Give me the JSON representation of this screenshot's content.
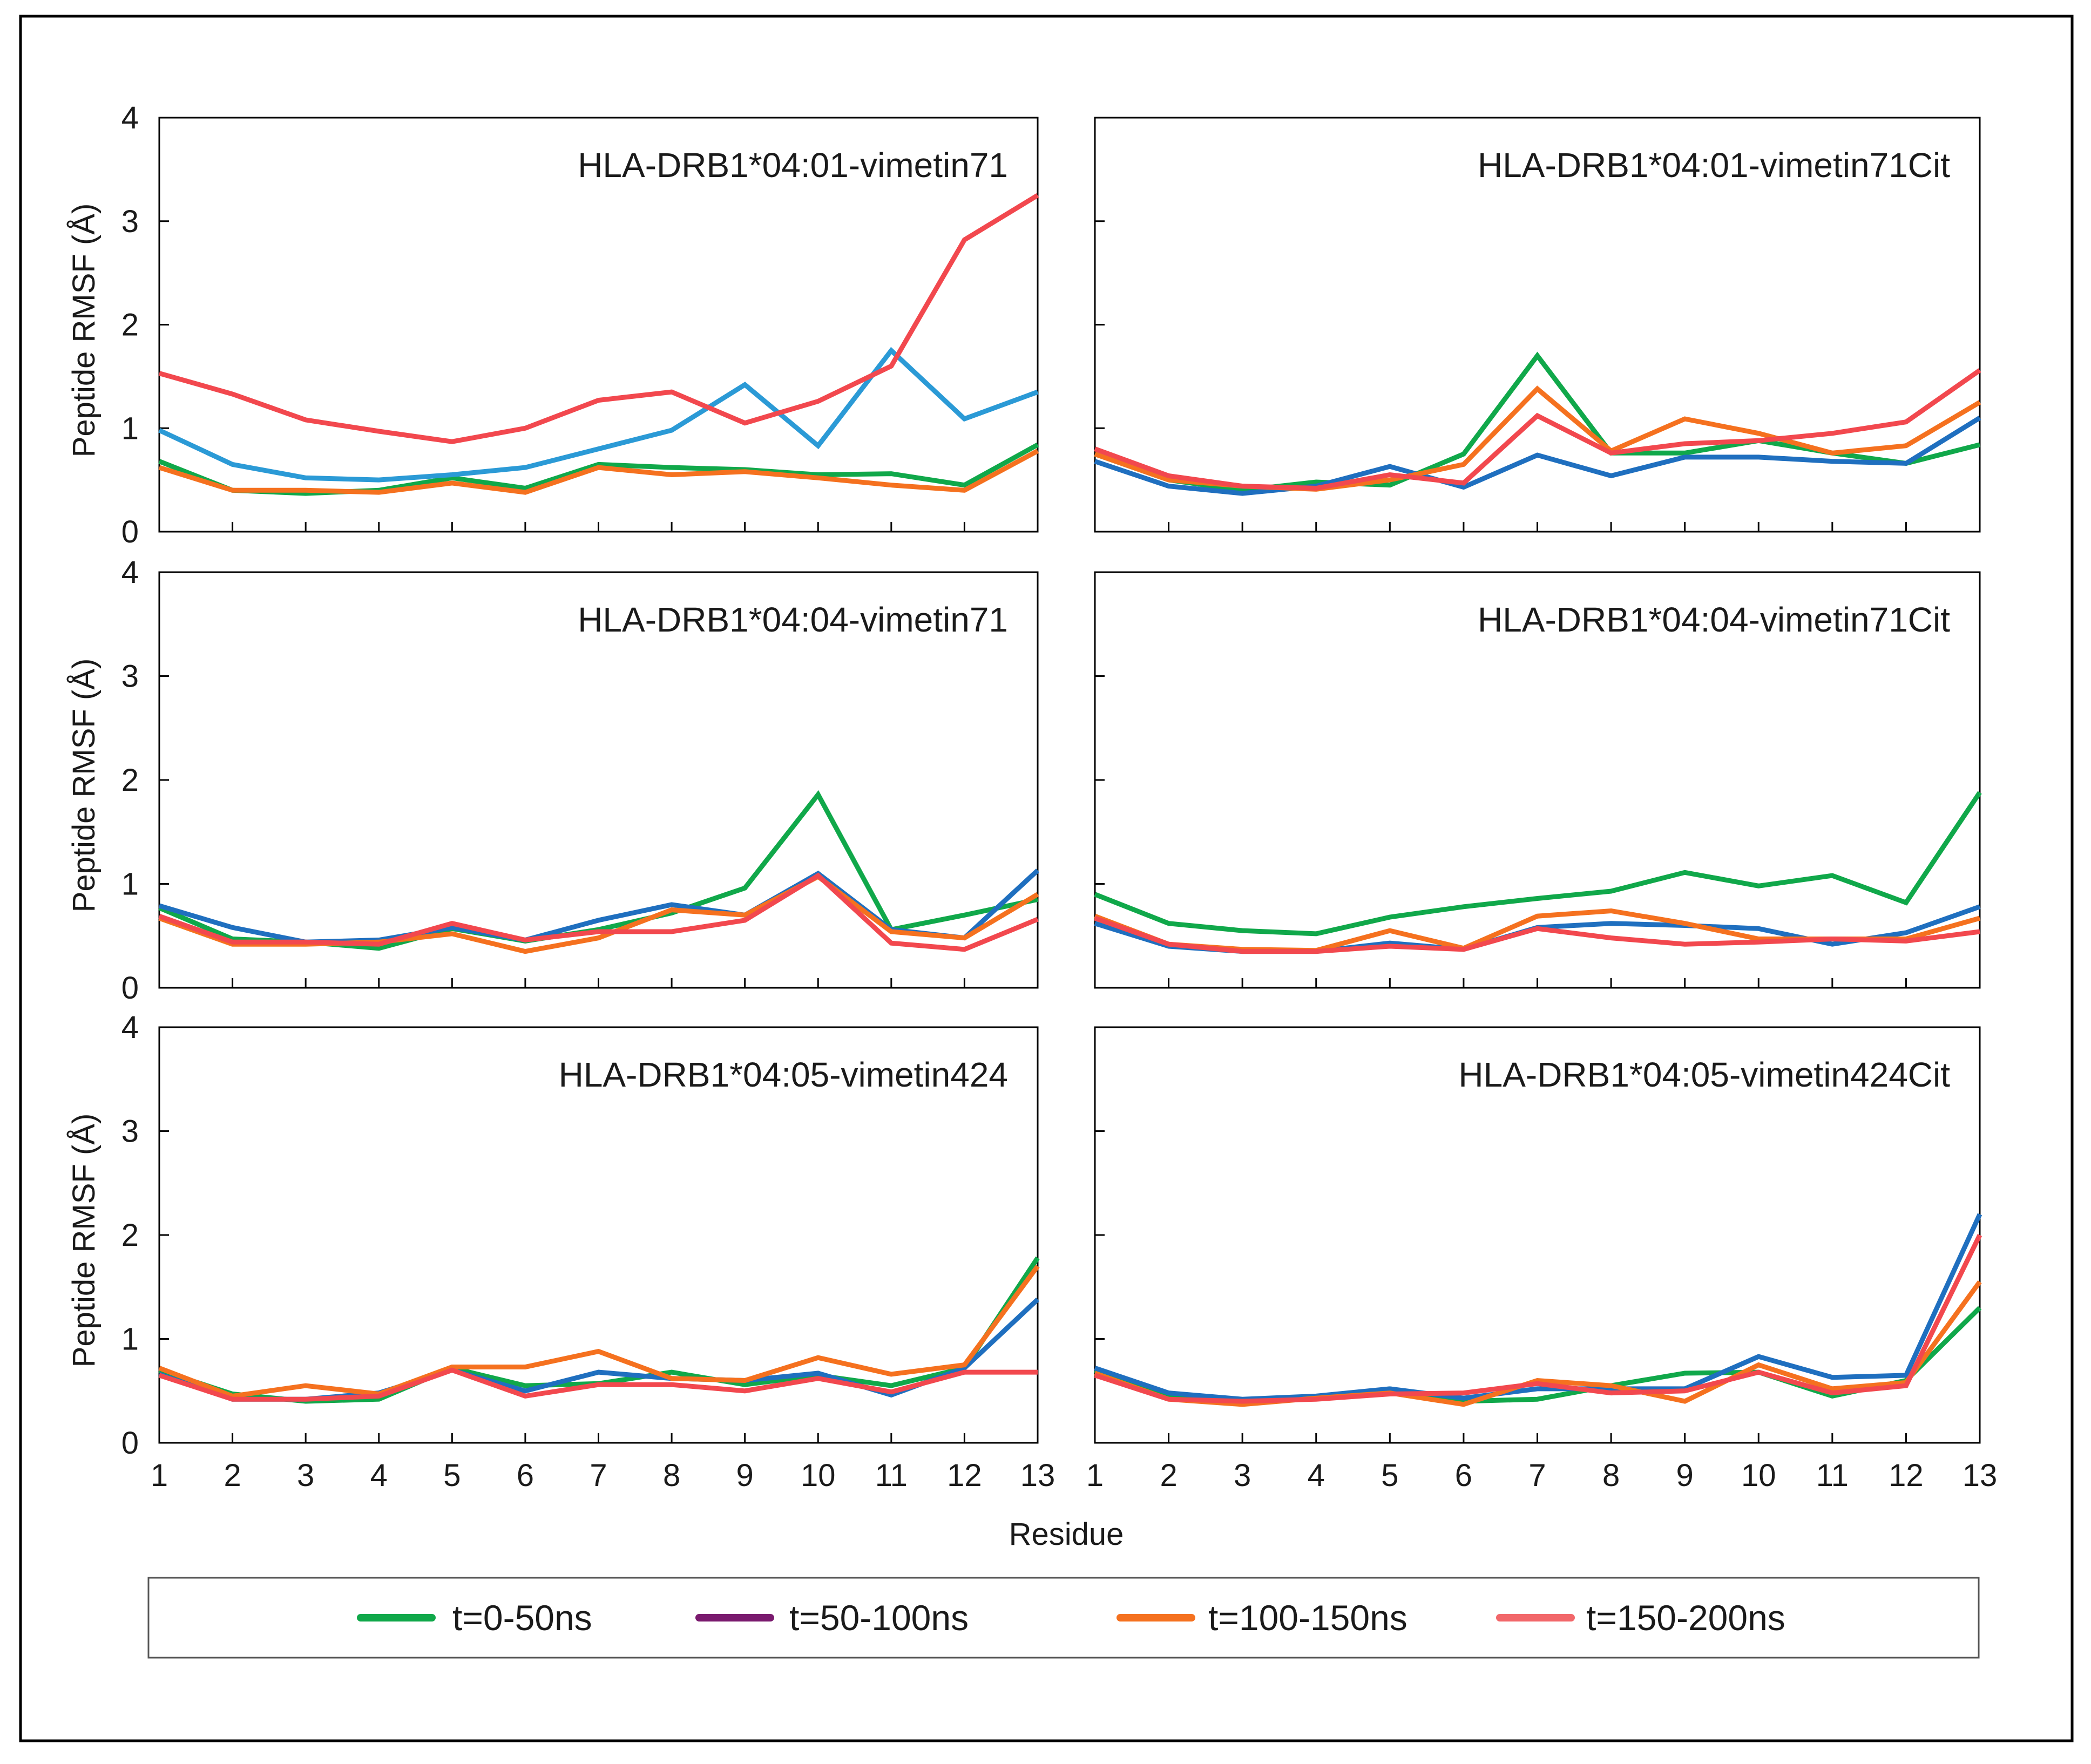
{
  "figure": {
    "ylabel": "Peptide RMSF (Å)",
    "xlabel": "Residue"
  },
  "legend": [
    {
      "label": "t=0-50ns",
      "color": "#10a84a"
    },
    {
      "label": "t=50-100ns",
      "color": "#7a1a6e"
    },
    {
      "label": "t=100-150ns",
      "color": "#f5711f"
    },
    {
      "label": "t=150-200ns",
      "color": "#f2676a"
    }
  ],
  "chart_data": [
    {
      "type": "line",
      "title": "HLA-DRB1*04:01-vimetin71",
      "xlabel": "Residue",
      "ylabel": "Peptide RMSF (Å)",
      "x": [
        1,
        2,
        3,
        4,
        5,
        6,
        7,
        8,
        9,
        10,
        11,
        12,
        13
      ],
      "ylim": [
        0,
        4
      ],
      "xlim": [
        1,
        13
      ],
      "series": [
        {
          "name": "t=0-50ns",
          "color": "#10a84a",
          "values": [
            0.68,
            0.4,
            0.37,
            0.4,
            0.52,
            0.42,
            0.65,
            0.62,
            0.6,
            0.55,
            0.56,
            0.45,
            0.84
          ]
        },
        {
          "name": "t=50-100ns",
          "color": "#2b9ad6",
          "values": [
            0.98,
            0.65,
            0.52,
            0.5,
            0.55,
            0.62,
            0.8,
            0.98,
            1.42,
            0.83,
            1.75,
            1.09,
            1.35
          ]
        },
        {
          "name": "t=100-150ns",
          "color": "#f5711f",
          "values": [
            0.62,
            0.4,
            0.4,
            0.38,
            0.47,
            0.38,
            0.62,
            0.55,
            0.58,
            0.52,
            0.45,
            0.4,
            0.78
          ]
        },
        {
          "name": "t=150-200ns",
          "color": "#f2484e",
          "values": [
            1.53,
            1.33,
            1.08,
            0.97,
            0.87,
            1.0,
            1.27,
            1.35,
            1.05,
            1.26,
            1.6,
            2.82,
            3.25
          ]
        }
      ]
    },
    {
      "type": "line",
      "title": "HLA-DRB1*04:01-vimetin71Cit",
      "xlabel": "Residue",
      "ylabel": "Peptide RMSF (Å)",
      "x": [
        1,
        2,
        3,
        4,
        5,
        6,
        7,
        8,
        9,
        10,
        11,
        12,
        13
      ],
      "ylim": [
        0,
        4
      ],
      "xlim": [
        1,
        13
      ],
      "series": [
        {
          "name": "t=0-50ns",
          "color": "#10a84a",
          "values": [
            0.75,
            0.5,
            0.4,
            0.48,
            0.45,
            0.75,
            1.7,
            0.76,
            0.76,
            0.88,
            0.76,
            0.66,
            0.84
          ]
        },
        {
          "name": "t=50-100ns",
          "color": "#1f6fbf",
          "values": [
            0.68,
            0.44,
            0.37,
            0.44,
            0.63,
            0.43,
            0.74,
            0.54,
            0.72,
            0.72,
            0.68,
            0.66,
            1.1
          ]
        },
        {
          "name": "t=100-150ns",
          "color": "#f5711f",
          "values": [
            0.75,
            0.5,
            0.44,
            0.41,
            0.5,
            0.65,
            1.38,
            0.78,
            1.09,
            0.95,
            0.76,
            0.83,
            1.25
          ]
        },
        {
          "name": "t=150-200ns",
          "color": "#f2484e",
          "values": [
            0.8,
            0.54,
            0.44,
            0.42,
            0.55,
            0.47,
            1.12,
            0.76,
            0.85,
            0.88,
            0.95,
            1.06,
            1.56
          ]
        }
      ]
    },
    {
      "type": "line",
      "title": "HLA-DRB1*04:04-vimetin71",
      "xlabel": "Residue",
      "ylabel": "Peptide RMSF (Å)",
      "x": [
        1,
        2,
        3,
        4,
        5,
        6,
        7,
        8,
        9,
        10,
        11,
        12,
        13
      ],
      "ylim": [
        0,
        4
      ],
      "xlim": [
        1,
        13
      ],
      "series": [
        {
          "name": "t=0-50ns",
          "color": "#10a84a",
          "values": [
            0.77,
            0.47,
            0.44,
            0.38,
            0.57,
            0.45,
            0.56,
            0.72,
            0.96,
            1.86,
            0.56,
            0.7,
            0.85
          ]
        },
        {
          "name": "t=50-100ns",
          "color": "#1f6fbf",
          "values": [
            0.79,
            0.58,
            0.44,
            0.46,
            0.58,
            0.46,
            0.65,
            0.8,
            0.7,
            1.1,
            0.56,
            0.48,
            1.13
          ]
        },
        {
          "name": "t=100-150ns",
          "color": "#f5711f",
          "values": [
            0.67,
            0.42,
            0.42,
            0.44,
            0.52,
            0.35,
            0.48,
            0.75,
            0.7,
            1.07,
            0.54,
            0.48,
            0.9
          ]
        },
        {
          "name": "t=150-200ns",
          "color": "#f2484e",
          "values": [
            0.69,
            0.44,
            0.44,
            0.42,
            0.62,
            0.46,
            0.54,
            0.54,
            0.65,
            1.08,
            0.43,
            0.37,
            0.66
          ]
        }
      ]
    },
    {
      "type": "line",
      "title": "HLA-DRB1*04:04-vimetin71Cit",
      "xlabel": "Residue",
      "ylabel": "Peptide RMSF (Å)",
      "x": [
        1,
        2,
        3,
        4,
        5,
        6,
        7,
        8,
        9,
        10,
        11,
        12,
        13
      ],
      "ylim": [
        0,
        4
      ],
      "xlim": [
        1,
        13
      ],
      "series": [
        {
          "name": "t=0-50ns",
          "color": "#10a84a",
          "values": [
            0.9,
            0.62,
            0.55,
            0.52,
            0.68,
            0.78,
            0.86,
            0.93,
            1.11,
            0.98,
            1.08,
            0.82,
            1.88
          ]
        },
        {
          "name": "t=50-100ns",
          "color": "#1f6fbf",
          "values": [
            0.62,
            0.4,
            0.35,
            0.35,
            0.43,
            0.37,
            0.58,
            0.62,
            0.6,
            0.57,
            0.42,
            0.53,
            0.78
          ]
        },
        {
          "name": "t=100-150ns",
          "color": "#f5711f",
          "values": [
            0.69,
            0.42,
            0.37,
            0.36,
            0.55,
            0.38,
            0.69,
            0.74,
            0.62,
            0.47,
            0.47,
            0.47,
            0.67
          ]
        },
        {
          "name": "t=150-200ns",
          "color": "#f2484e",
          "values": [
            0.67,
            0.42,
            0.35,
            0.35,
            0.4,
            0.37,
            0.57,
            0.48,
            0.42,
            0.44,
            0.47,
            0.45,
            0.54
          ]
        }
      ]
    },
    {
      "type": "line",
      "title": "HLA-DRB1*04:05-vimetin424",
      "xlabel": "Residue",
      "ylabel": "Peptide RMSF (Å)",
      "x": [
        1,
        2,
        3,
        4,
        5,
        6,
        7,
        8,
        9,
        10,
        11,
        12,
        13
      ],
      "ylim": [
        0,
        4
      ],
      "xlim": [
        1,
        13
      ],
      "series": [
        {
          "name": "t=0-50ns",
          "color": "#10a84a",
          "values": [
            0.7,
            0.47,
            0.4,
            0.42,
            0.72,
            0.55,
            0.57,
            0.68,
            0.56,
            0.65,
            0.55,
            0.72,
            1.78
          ]
        },
        {
          "name": "t=50-100ns",
          "color": "#1f6fbf",
          "values": [
            0.66,
            0.42,
            0.42,
            0.48,
            0.7,
            0.5,
            0.68,
            0.62,
            0.6,
            0.67,
            0.46,
            0.72,
            1.38
          ]
        },
        {
          "name": "t=100-150ns",
          "color": "#f5711f",
          "values": [
            0.72,
            0.45,
            0.55,
            0.47,
            0.73,
            0.73,
            0.88,
            0.62,
            0.6,
            0.82,
            0.66,
            0.75,
            1.7
          ]
        },
        {
          "name": "t=150-200ns",
          "color": "#f2484e",
          "values": [
            0.65,
            0.42,
            0.42,
            0.45,
            0.7,
            0.45,
            0.56,
            0.56,
            0.5,
            0.62,
            0.49,
            0.68,
            0.68
          ]
        }
      ]
    },
    {
      "type": "line",
      "title": "HLA-DRB1*04:05-vimetin424Cit",
      "xlabel": "Residue",
      "ylabel": "Peptide RMSF (Å)",
      "x": [
        1,
        2,
        3,
        4,
        5,
        6,
        7,
        8,
        9,
        10,
        11,
        12,
        13
      ],
      "ylim": [
        0,
        4
      ],
      "xlim": [
        1,
        13
      ],
      "series": [
        {
          "name": "t=0-50ns",
          "color": "#10a84a",
          "values": [
            0.7,
            0.45,
            0.4,
            0.43,
            0.52,
            0.4,
            0.42,
            0.55,
            0.67,
            0.68,
            0.45,
            0.6,
            1.3
          ]
        },
        {
          "name": "t=50-100ns",
          "color": "#1f6fbf",
          "values": [
            0.72,
            0.48,
            0.42,
            0.45,
            0.52,
            0.43,
            0.52,
            0.52,
            0.52,
            0.83,
            0.63,
            0.65,
            2.2
          ]
        },
        {
          "name": "t=100-150ns",
          "color": "#f5711f",
          "values": [
            0.67,
            0.42,
            0.37,
            0.43,
            0.48,
            0.37,
            0.6,
            0.55,
            0.4,
            0.75,
            0.52,
            0.58,
            1.55
          ]
        },
        {
          "name": "t=150-200ns",
          "color": "#f2484e",
          "values": [
            0.65,
            0.42,
            0.4,
            0.42,
            0.47,
            0.48,
            0.57,
            0.48,
            0.5,
            0.68,
            0.48,
            0.55,
            2.0
          ]
        }
      ]
    }
  ]
}
